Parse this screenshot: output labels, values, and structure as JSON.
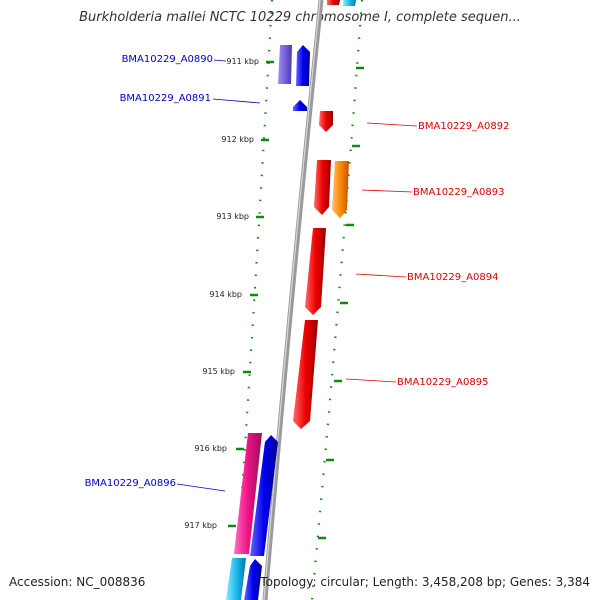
{
  "title": "Burkholderia mallei NCTC 10229 chromosome I, complete sequen...",
  "accession": "Accession: NC_008836",
  "topology": "Topology: circular; Length: 3,458,208 bp; Genes: 3,384",
  "colors": {
    "forward_label": "#0000cc",
    "reverse_label": "#dd0000",
    "axis": "#9a9a9a",
    "tick": "#118811"
  },
  "ticks": [
    {
      "label": "911 kbp"
    },
    {
      "label": "912 kbp"
    },
    {
      "label": "913 kbp"
    },
    {
      "label": "914 kbp"
    },
    {
      "label": "915 kbp"
    },
    {
      "label": "916 kbp"
    },
    {
      "label": "917 kbp"
    }
  ],
  "genes": [
    {
      "name": "BMA10229_A0890",
      "strand": "forward",
      "color": "#0000ee"
    },
    {
      "name": "BMA10229_A0891",
      "strand": "forward",
      "color": "#0000ee"
    },
    {
      "name": "BMA10229_A0892",
      "strand": "reverse",
      "color": "#ee0000"
    },
    {
      "name": "BMA10229_A0893",
      "strand": "reverse",
      "color": "#ff8800"
    },
    {
      "name": "BMA10229_A0894",
      "strand": "reverse",
      "color": "#ee0000"
    },
    {
      "name": "BMA10229_A0895",
      "strand": "reverse",
      "color": "#ee0000"
    },
    {
      "name": "BMA10229_A0896",
      "strand": "forward",
      "color": "#0000ee"
    }
  ]
}
